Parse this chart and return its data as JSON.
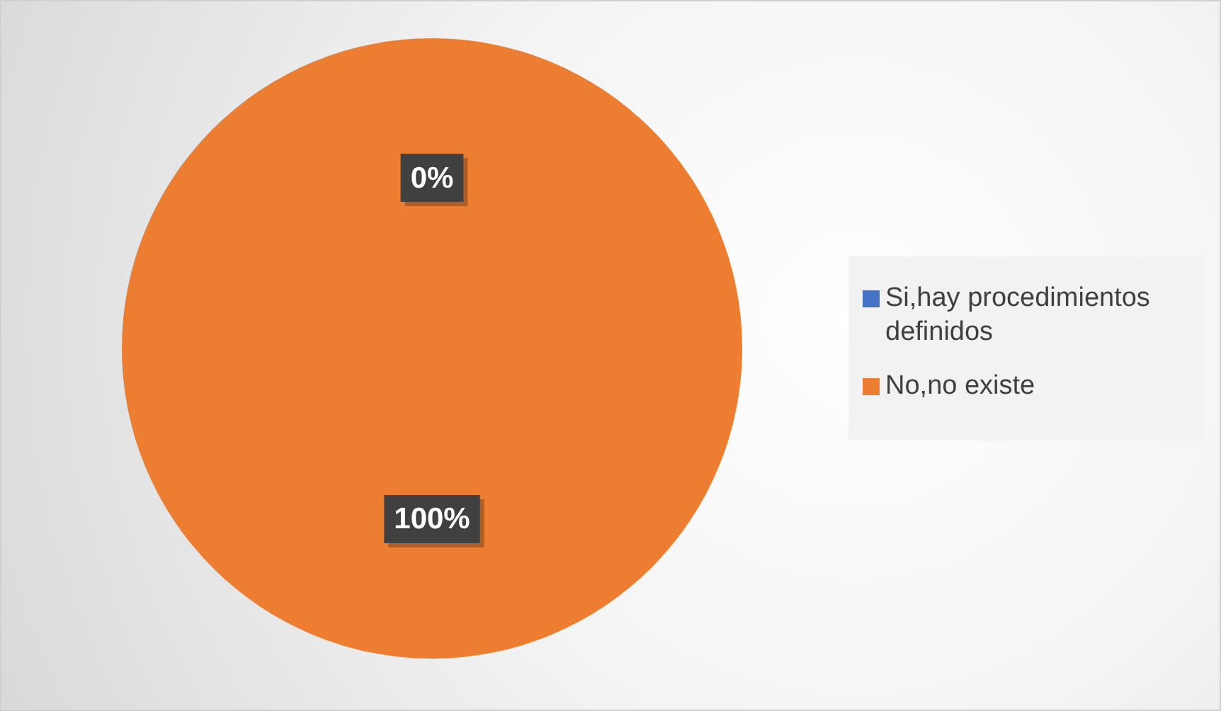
{
  "chart_data": {
    "type": "pie",
    "categories": [
      "Si,hay procedimientos definidos",
      "No,no existe"
    ],
    "values": [
      0,
      100
    ],
    "colors": [
      "#4472c4",
      "#ed7d31"
    ],
    "value_labels": [
      "0%",
      "100%"
    ],
    "legend": "right"
  }
}
